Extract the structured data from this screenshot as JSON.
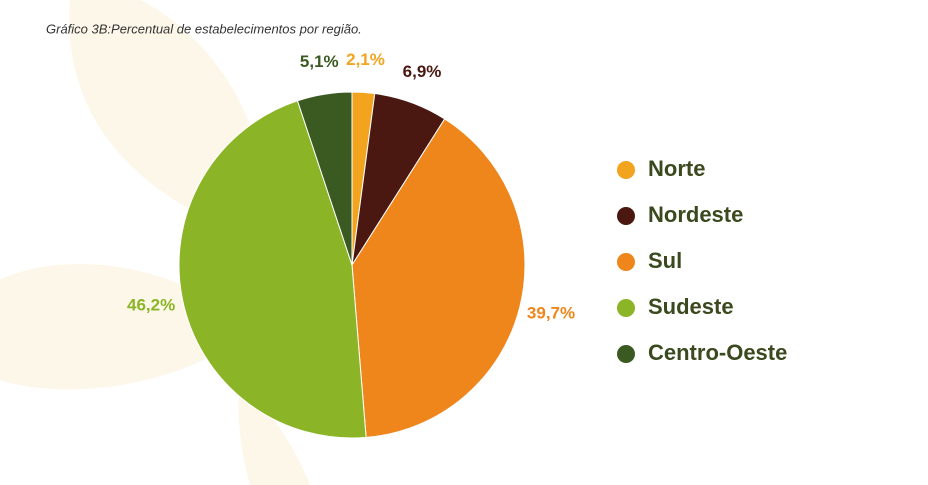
{
  "chart_data": {
    "type": "pie",
    "title": "Gráfico 3B:Percentual de estabelecimentos por região.",
    "categories": [
      "Norte",
      "Nordeste",
      "Sul",
      "Sudeste",
      "Centro-Oeste"
    ],
    "values": [
      2.1,
      6.9,
      39.7,
      46.2,
      5.1
    ],
    "value_labels": [
      "2,1%",
      "6,9%",
      "39,7%",
      "46,2%",
      "5,1%"
    ],
    "colors": [
      "#f2a41f",
      "#4a1810",
      "#ef861c",
      "#8bb526",
      "#3a5a22"
    ],
    "legend": "right"
  }
}
